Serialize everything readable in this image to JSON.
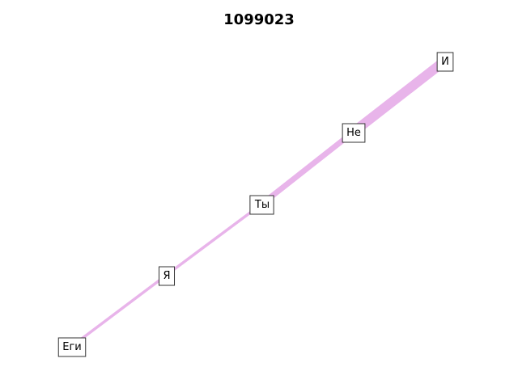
{
  "title": "1099023",
  "edge_color": "#e8b4ea",
  "nodes": [
    {
      "id": "egi",
      "label": "Еги"
    },
    {
      "id": "ya",
      "label": "Я"
    },
    {
      "id": "ty",
      "label": "Ты"
    },
    {
      "id": "ne",
      "label": "Не"
    },
    {
      "id": "i",
      "label": "И"
    }
  ],
  "edges": [
    {
      "from": "egi",
      "to": "ya",
      "weight": 1
    },
    {
      "from": "ya",
      "to": "ty",
      "weight": 1
    },
    {
      "from": "ty",
      "to": "ne",
      "weight": 2
    },
    {
      "from": "ne",
      "to": "i",
      "weight": 3
    }
  ]
}
